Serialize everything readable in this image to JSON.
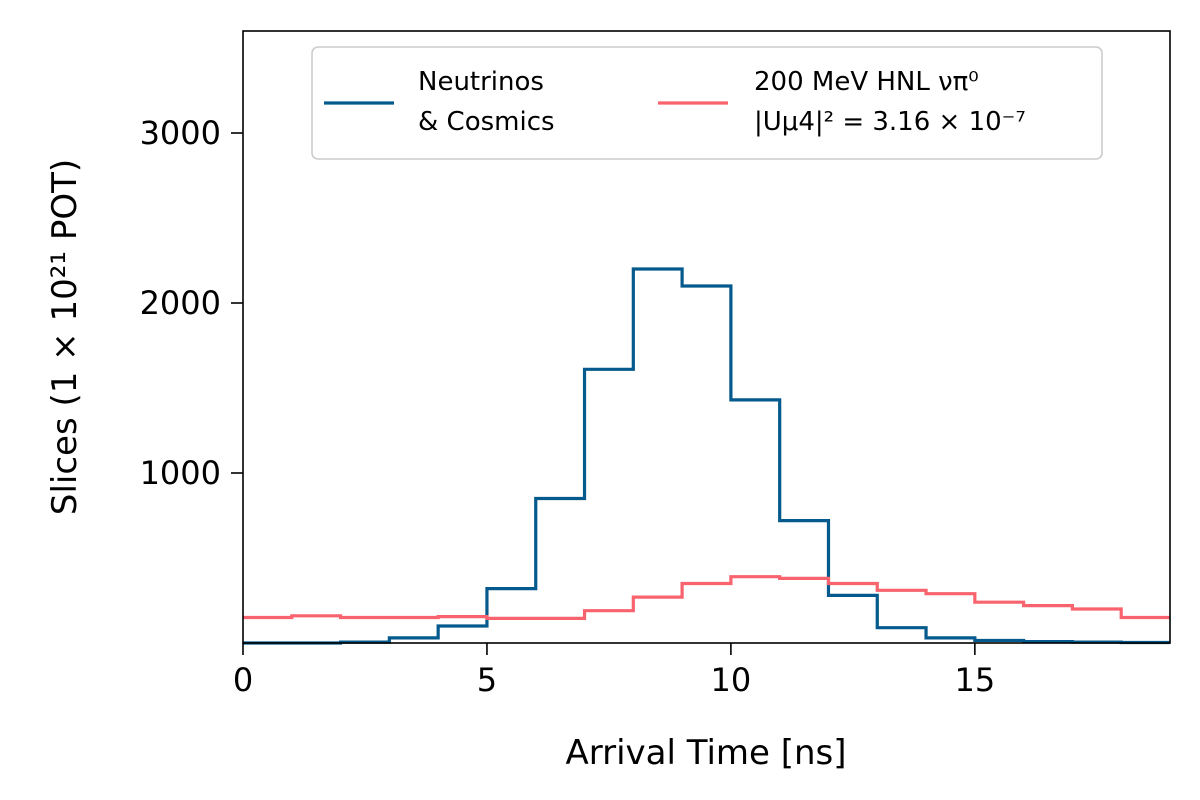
{
  "chart_data": {
    "type": "line",
    "step": "histogram",
    "xlabel": "Arrival Time [ns]",
    "ylabel": "Slices (1 × 10²¹ POT)",
    "xlim": [
      0,
      19
    ],
    "ylim": [
      0,
      3600
    ],
    "x_ticks": [
      0,
      5,
      10,
      15
    ],
    "y_ticks": [
      1000,
      2000,
      3000
    ],
    "bin_edges": [
      0,
      1,
      2,
      3,
      4,
      5,
      6,
      7,
      8,
      9,
      10,
      11,
      12,
      13,
      14,
      15,
      16,
      17,
      18,
      19
    ],
    "legend_position": "upper-center",
    "series": [
      {
        "name": "Neutrinos\n& Cosmics",
        "name_lines": [
          "Neutrinos",
          "& Cosmics"
        ],
        "color": "#045a8d",
        "values": [
          0,
          0,
          5,
          30,
          100,
          320,
          850,
          1610,
          2200,
          2100,
          1430,
          720,
          280,
          90,
          30,
          15,
          8,
          5,
          3
        ]
      },
      {
        "name": "200 MeV HNL νπ⁰ |Uμ4|² = 3.16 × 10⁻⁷",
        "name_lines": [
          "200 MeV HNL νπ⁰",
          "|Uμ4|² = 3.16 × 10⁻⁷"
        ],
        "color": "#f8636e",
        "values": [
          150,
          160,
          150,
          150,
          155,
          145,
          145,
          190,
          270,
          350,
          390,
          380,
          350,
          310,
          290,
          240,
          220,
          200,
          150
        ]
      }
    ]
  }
}
